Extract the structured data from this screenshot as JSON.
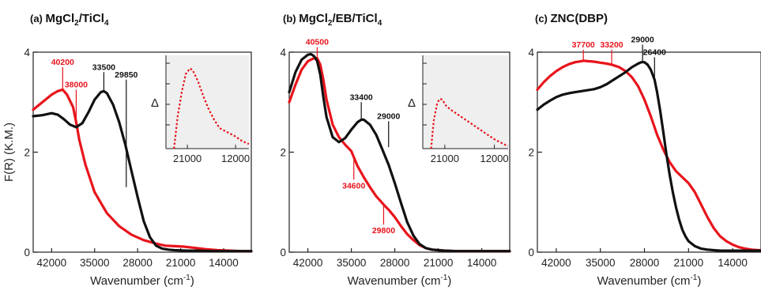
{
  "colors": {
    "black": "#111111",
    "red": "#e8141c",
    "inset_bg": "#efefef"
  },
  "chart_data": [
    {
      "type": "line",
      "panel_prefix": "(a) ",
      "title_parts": [
        "MgCl",
        "2",
        "/TiCl",
        "4"
      ],
      "xlabel": "Wavenumber (cm",
      "xlabel_sup": "-1",
      "xlabel_close": ")",
      "ylabel": "F(R) (K.M.)",
      "xlim": [
        45000,
        9500
      ],
      "ylim": [
        0,
        4
      ],
      "xticks": [
        "42000",
        "35000",
        "28000",
        "21000",
        "14000"
      ],
      "yticks": [
        "0",
        "2",
        "4"
      ],
      "series": [
        {
          "color": "red",
          "x": [
            45000,
            43000,
            42000,
            41000,
            40200,
            39500,
            38500,
            38000,
            37500,
            36500,
            35000,
            33000,
            31000,
            29000,
            27000,
            25000,
            23500,
            22000,
            20500,
            19000,
            17000,
            15000,
            13000,
            11000,
            9500
          ],
          "y": [
            2.85,
            3.05,
            3.15,
            3.22,
            3.25,
            3.15,
            2.9,
            2.6,
            2.25,
            1.75,
            1.2,
            0.78,
            0.52,
            0.35,
            0.24,
            0.17,
            0.13,
            0.12,
            0.11,
            0.09,
            0.06,
            0.04,
            0.03,
            0.02,
            0.02
          ]
        },
        {
          "color": "black",
          "x": [
            45000,
            43500,
            42000,
            41000,
            40000,
            39000,
            38000,
            37000,
            36000,
            35000,
            34000,
            33500,
            33000,
            32000,
            31000,
            30000,
            29000,
            28000,
            27000,
            26000,
            25000,
            24000,
            23000,
            22000,
            20000,
            18000,
            16000,
            14000,
            12000,
            9500
          ],
          "y": [
            2.72,
            2.74,
            2.78,
            2.75,
            2.66,
            2.55,
            2.5,
            2.58,
            2.8,
            3.05,
            3.2,
            3.22,
            3.18,
            2.95,
            2.6,
            2.15,
            1.62,
            1.1,
            0.62,
            0.3,
            0.13,
            0.07,
            0.05,
            0.04,
            0.03,
            0.03,
            0.02,
            0.02,
            0.02,
            0.02
          ]
        }
      ],
      "annotations": [
        {
          "text": "40200",
          "color": "red",
          "x": 40200,
          "y": 3.25,
          "ly": 3.7
        },
        {
          "text": "38000",
          "color": "red",
          "x": 38000,
          "y": 2.6,
          "ly": 3.25
        },
        {
          "text": "33500",
          "color": "black",
          "x": 33500,
          "y": 3.22,
          "ly": 3.6
        },
        {
          "text": "29850",
          "color": "black",
          "x": 29850,
          "y": 1.3,
          "ly": 3.45
        }
      ],
      "inset": {
        "ylabel": "Δ",
        "xlim": [
          25000,
          9500
        ],
        "xticks": [
          "21000",
          "12000"
        ],
        "x": [
          23500,
          22800,
          22000,
          21300,
          20500,
          20000,
          19000,
          18000,
          17000,
          16000,
          15000,
          14000,
          13000,
          12000,
          11000,
          10000,
          9500
        ],
        "y": [
          0.0,
          0.35,
          0.62,
          0.8,
          0.86,
          0.84,
          0.72,
          0.56,
          0.42,
          0.31,
          0.22,
          0.19,
          0.16,
          0.13,
          0.09,
          0.06,
          0.05
        ]
      }
    },
    {
      "type": "line",
      "panel_prefix": "(b) ",
      "title_parts": [
        "MgCl",
        "2",
        "/EB/TiCl",
        "4"
      ],
      "xlabel": "Wavenumber (cm",
      "xlabel_sup": "-1",
      "xlabel_close": ")",
      "ylabel": "",
      "xlim": [
        45000,
        9500
      ],
      "ylim": [
        0,
        4
      ],
      "xticks": [
        "42000",
        "35000",
        "28000",
        "21000",
        "14000"
      ],
      "yticks": [
        "0",
        "2",
        "4"
      ],
      "series": [
        {
          "color": "red",
          "x": [
            45000,
            44000,
            43000,
            42000,
            41000,
            40500,
            40000,
            39500,
            39000,
            38000,
            37000,
            36000,
            35000,
            34600,
            34000,
            33000,
            32000,
            31000,
            30000,
            29800,
            29000,
            28000,
            27000,
            26000,
            25000,
            24000,
            23000,
            22000,
            21000,
            20000,
            18000,
            16000,
            14000,
            12000,
            9500
          ],
          "y": [
            3.0,
            3.35,
            3.65,
            3.82,
            3.88,
            3.88,
            3.75,
            3.45,
            3.05,
            2.55,
            2.3,
            2.15,
            2.02,
            1.9,
            1.72,
            1.5,
            1.3,
            1.12,
            0.98,
            0.95,
            0.85,
            0.7,
            0.52,
            0.36,
            0.24,
            0.14,
            0.08,
            0.05,
            0.04,
            0.03,
            0.02,
            0.02,
            0.02,
            0.02,
            0.02
          ]
        },
        {
          "color": "black",
          "x": [
            45000,
            44000,
            43000,
            42000,
            41500,
            41000,
            40500,
            40000,
            39500,
            39000,
            38000,
            37000,
            36000,
            35000,
            34000,
            33400,
            33000,
            32000,
            31000,
            30000,
            29000,
            28000,
            27000,
            26000,
            25000,
            24000,
            23000,
            22000,
            21000,
            20000,
            18000,
            16000,
            14000,
            12000,
            9500
          ],
          "y": [
            3.2,
            3.6,
            3.85,
            3.95,
            3.96,
            3.92,
            3.82,
            3.55,
            3.1,
            2.7,
            2.3,
            2.2,
            2.28,
            2.45,
            2.6,
            2.65,
            2.65,
            2.55,
            2.35,
            2.05,
            1.75,
            1.38,
            0.98,
            0.6,
            0.33,
            0.16,
            0.08,
            0.05,
            0.04,
            0.03,
            0.02,
            0.02,
            0.02,
            0.02,
            0.02
          ]
        }
      ],
      "annotations": [
        {
          "text": "40500",
          "color": "red",
          "x": 40500,
          "y": 3.88,
          "ly": 4.1
        },
        {
          "text": "33400",
          "color": "black",
          "x": 33400,
          "y": 2.65,
          "ly": 3.0
        },
        {
          "text": "29000",
          "color": "black",
          "x": 29000,
          "y": 2.1,
          "ly": 2.62
        },
        {
          "text": "34600",
          "color": "red",
          "x": 34600,
          "y": 1.9,
          "ly": 1.45,
          "below": true
        },
        {
          "text": "29800",
          "color": "red",
          "x": 29800,
          "y": 0.95,
          "ly": 0.55,
          "below": true
        }
      ],
      "inset": {
        "ylabel": "Δ",
        "xlim": [
          25000,
          9500
        ],
        "xticks": [
          "21000",
          "12000"
        ],
        "x": [
          23500,
          23000,
          22400,
          22000,
          21600,
          21200,
          20800,
          20400,
          20000,
          19000,
          18000,
          17000,
          16000,
          15000,
          14000,
          13000,
          12000,
          11000,
          10000,
          9500
        ],
        "y": [
          0.0,
          0.3,
          0.48,
          0.53,
          0.53,
          0.5,
          0.46,
          0.44,
          0.42,
          0.38,
          0.34,
          0.3,
          0.26,
          0.22,
          0.18,
          0.14,
          0.1,
          0.07,
          0.04,
          0.03
        ]
      }
    },
    {
      "type": "line",
      "panel_prefix": "(c) ",
      "title_parts": [
        "ZNC(DBP)",
        "",
        "",
        ""
      ],
      "xlabel": "Wavenumber (cm",
      "xlabel_sup": "-1",
      "xlabel_close": ")",
      "ylabel": "",
      "xlim": [
        45000,
        9500
      ],
      "ylim": [
        0,
        4
      ],
      "xticks": [
        "42000",
        "35000",
        "28000",
        "21000",
        "14000"
      ],
      "yticks": [
        "0",
        "2",
        "4"
      ],
      "series": [
        {
          "color": "red",
          "x": [
            45000,
            44000,
            43000,
            42000,
            41000,
            40000,
            39000,
            38000,
            37700,
            37000,
            36000,
            35000,
            34000,
            33200,
            32000,
            31000,
            30000,
            29000,
            28000,
            27000,
            26000,
            25000,
            24000,
            23000,
            22000,
            21000,
            20000,
            19000,
            18000,
            17000,
            16000,
            15000,
            14000,
            13000,
            12000,
            11000,
            10000,
            9500
          ],
          "y": [
            3.25,
            3.4,
            3.52,
            3.62,
            3.7,
            3.76,
            3.8,
            3.82,
            3.83,
            3.82,
            3.81,
            3.79,
            3.77,
            3.75,
            3.7,
            3.62,
            3.5,
            3.32,
            3.05,
            2.72,
            2.35,
            2.05,
            1.8,
            1.62,
            1.5,
            1.38,
            1.2,
            0.95,
            0.7,
            0.48,
            0.32,
            0.22,
            0.15,
            0.1,
            0.07,
            0.05,
            0.04,
            0.04
          ]
        },
        {
          "color": "black",
          "x": [
            45000,
            44000,
            43000,
            42000,
            41000,
            40000,
            39000,
            38000,
            37000,
            36000,
            35000,
            34000,
            33000,
            32000,
            31000,
            30000,
            29000,
            28500,
            28000,
            27500,
            27000,
            26400,
            26000,
            25500,
            25000,
            24500,
            24000,
            23500,
            23000,
            22500,
            22000,
            21500,
            21000,
            20000,
            19000,
            18000,
            17000,
            16000,
            14000,
            12000,
            9500
          ],
          "y": [
            2.85,
            2.95,
            3.03,
            3.1,
            3.15,
            3.18,
            3.2,
            3.22,
            3.24,
            3.26,
            3.3,
            3.36,
            3.44,
            3.52,
            3.6,
            3.7,
            3.77,
            3.8,
            3.8,
            3.75,
            3.65,
            3.45,
            3.2,
            2.82,
            2.4,
            1.95,
            1.55,
            1.2,
            0.9,
            0.65,
            0.45,
            0.32,
            0.22,
            0.12,
            0.07,
            0.05,
            0.04,
            0.03,
            0.03,
            0.03,
            0.03
          ]
        }
      ],
      "annotations": [
        {
          "text": "37700",
          "color": "red",
          "x": 37700,
          "y": 3.83,
          "ly": 4.05
        },
        {
          "text": "33200",
          "color": "red",
          "x": 33200,
          "y": 3.75,
          "ly": 4.05
        },
        {
          "text": "29000",
          "color": "black",
          "x": 28300,
          "y": 3.8,
          "ly": 4.15
        },
        {
          "text": "26400",
          "color": "black",
          "x": 26400,
          "y": 3.45,
          "ly": 3.9
        }
      ]
    }
  ]
}
